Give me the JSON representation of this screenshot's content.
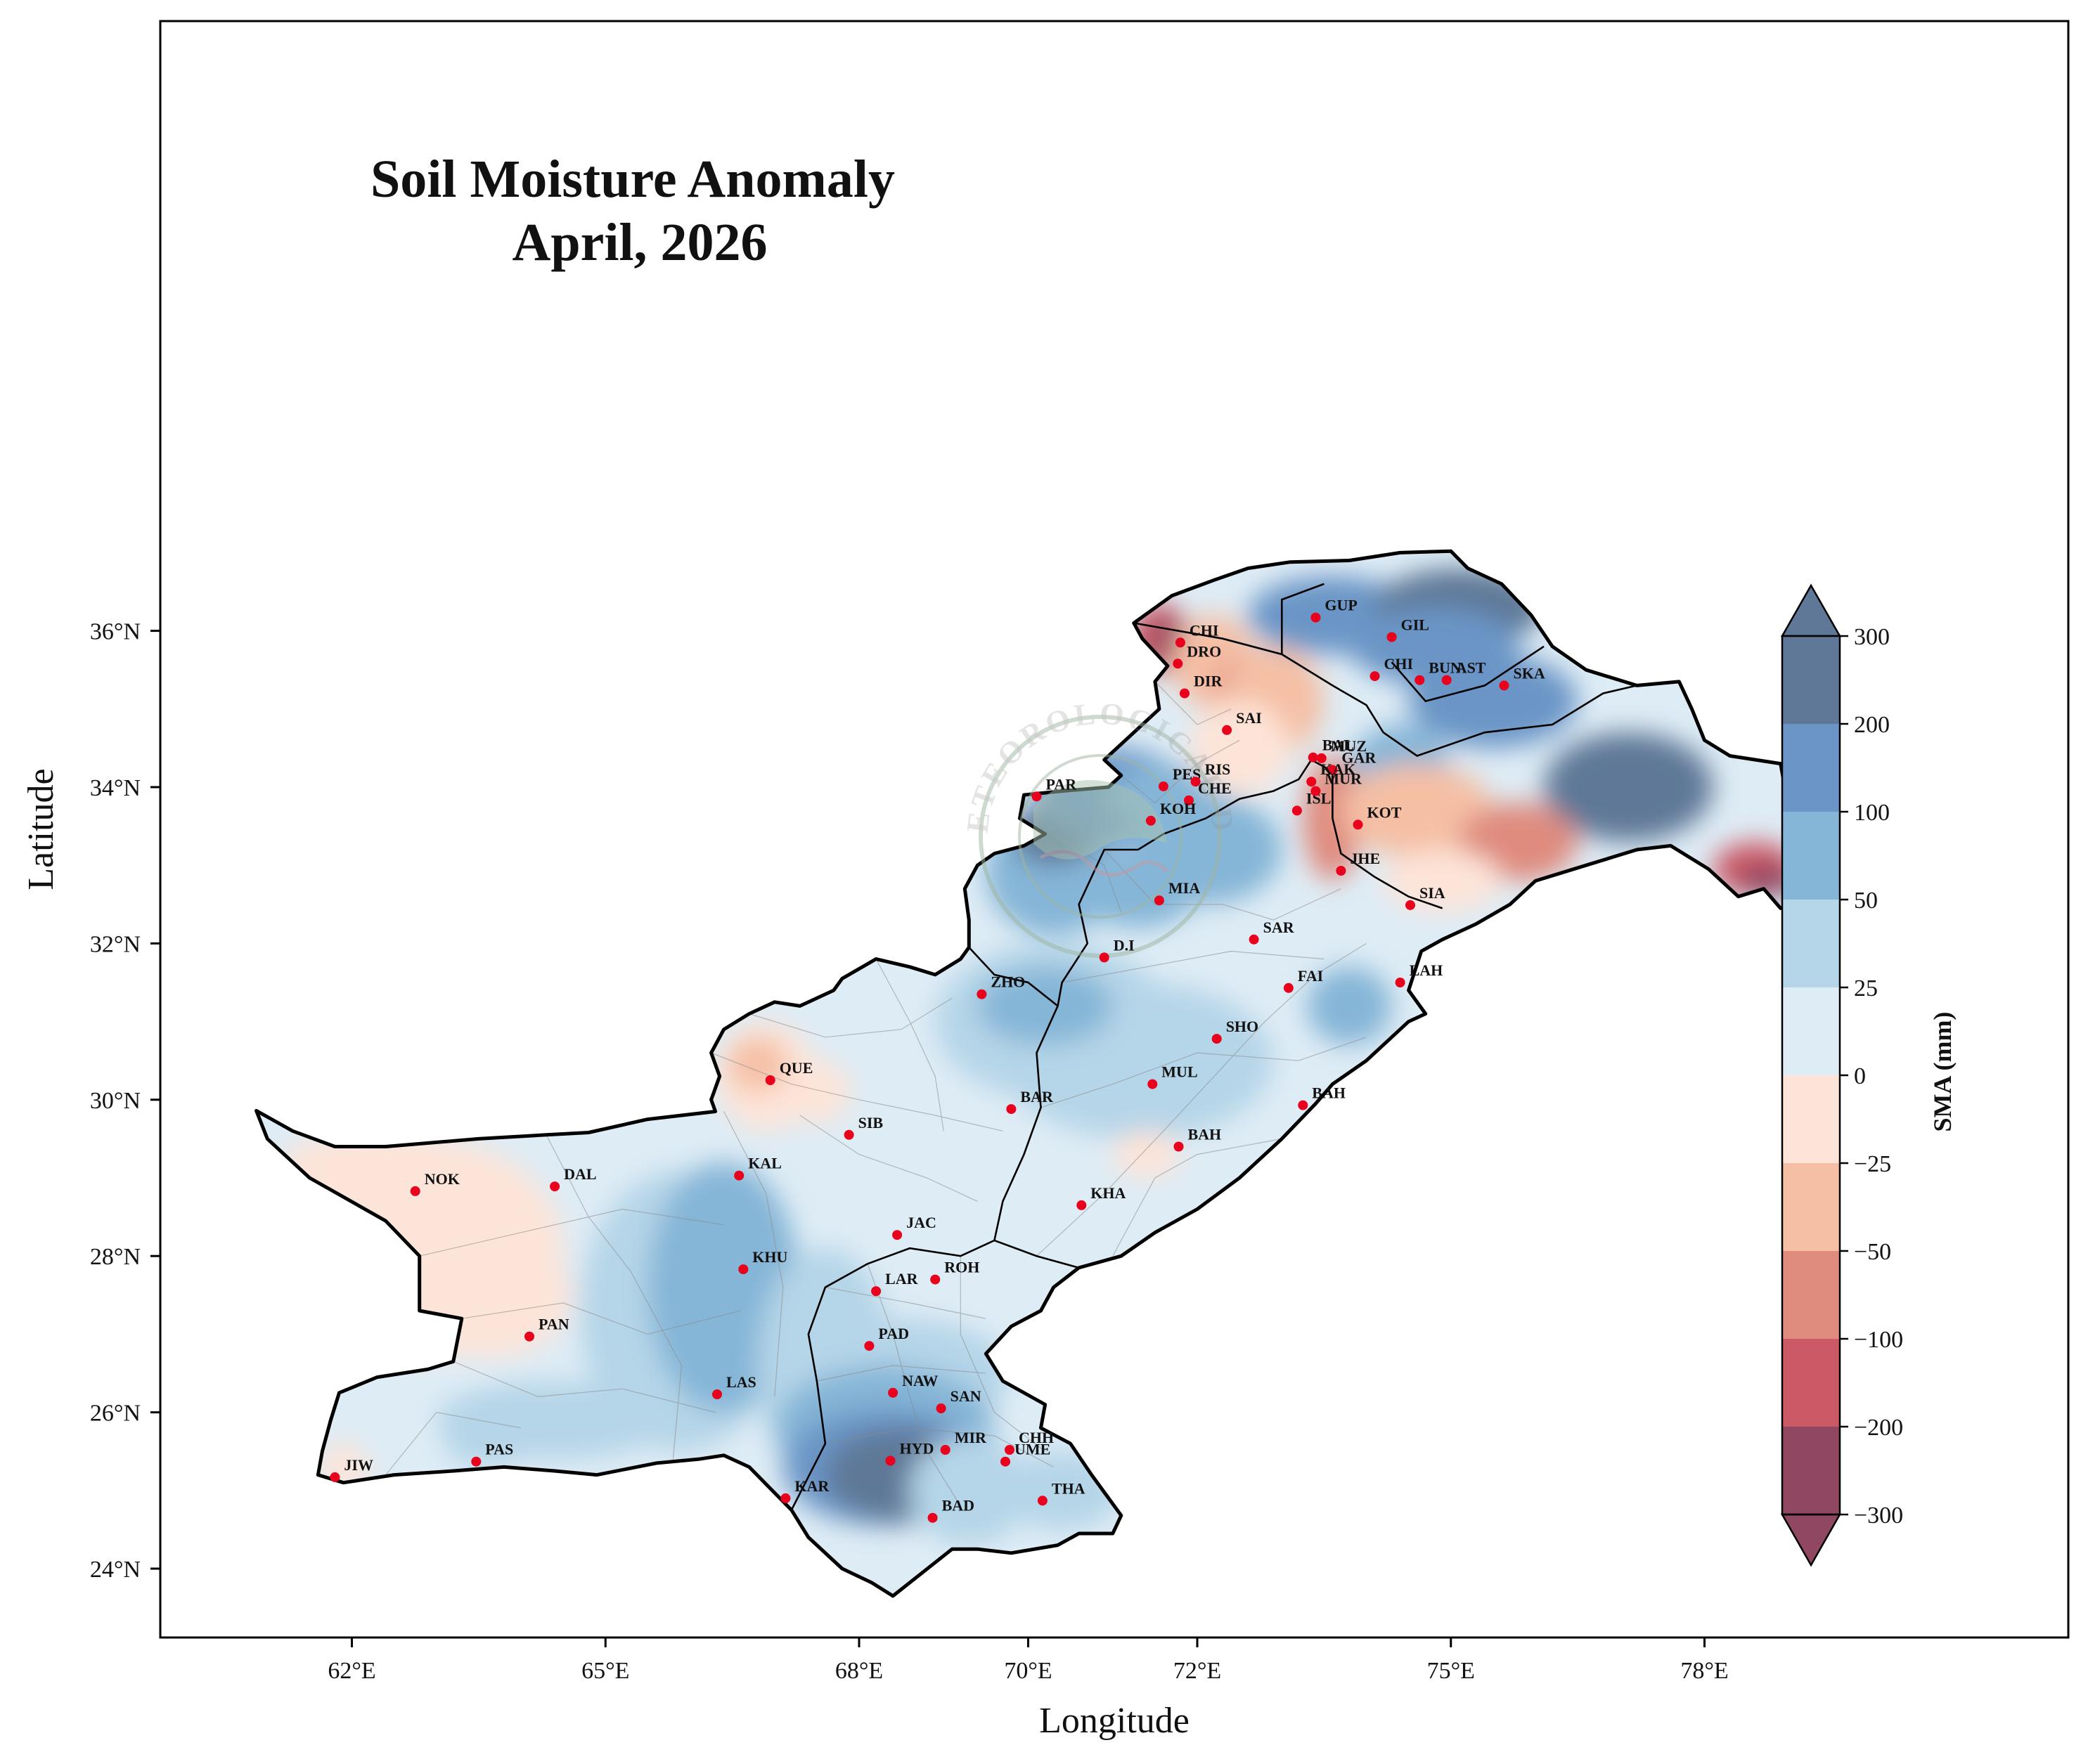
{
  "title": {
    "line1": "Soil Moisture Anomaly",
    "line2": "April, 2026"
  },
  "axes": {
    "xlabel": "Longitude",
    "ylabel": "Latitude",
    "x_ticks": [
      {
        "value": 62,
        "label": "62°E"
      },
      {
        "value": 65,
        "label": "65°E"
      },
      {
        "value": 68,
        "label": "68°E"
      },
      {
        "value": 70,
        "label": "70°E"
      },
      {
        "value": 72,
        "label": "72°E"
      },
      {
        "value": 75,
        "label": "75°E"
      },
      {
        "value": 78,
        "label": "78°E"
      }
    ],
    "y_ticks": [
      {
        "value": 36,
        "label": "36°N"
      },
      {
        "value": 34,
        "label": "34°N"
      },
      {
        "value": 32,
        "label": "32°N"
      },
      {
        "value": 30,
        "label": "30°N"
      },
      {
        "value": 28,
        "label": "28°N"
      },
      {
        "value": 26,
        "label": "26°N"
      },
      {
        "value": 24,
        "label": "24°N"
      }
    ]
  },
  "colorbar": {
    "title": "SMA (mm)",
    "levels": [
      {
        "label": "300",
        "color": "#5f7897"
      },
      {
        "label": "200",
        "color": "#6b95c6"
      },
      {
        "label": "100",
        "color": "#85b5d7"
      },
      {
        "label": "50",
        "color": "#b5d5e8"
      },
      {
        "label": "25",
        "color": "#deecf5"
      },
      {
        "label": "0",
        "color": "#fde4d8"
      },
      {
        "label": "−25",
        "color": "#f5bfa4"
      },
      {
        "label": "−50",
        "color": "#df8b7e"
      },
      {
        "label": "−100",
        "color": "#cc5a66"
      },
      {
        "label": "−200",
        "color": "#8f4762"
      },
      {
        "label": "−300",
        "color": ""
      }
    ]
  },
  "watermark": {
    "text_top": "PAKISTAN METEOROLOGICAL DEPARTMENT"
  },
  "stations": [
    {
      "code": "CHI",
      "lon": 71.8,
      "lat": 35.85
    },
    {
      "code": "DRO",
      "lon": 71.77,
      "lat": 35.58
    },
    {
      "code": "DIR",
      "lon": 71.85,
      "lat": 35.2
    },
    {
      "code": "GUP",
      "lon": 73.4,
      "lat": 36.17
    },
    {
      "code": "GIL",
      "lon": 74.3,
      "lat": 35.92
    },
    {
      "code": "CHI",
      "lon": 74.1,
      "lat": 35.42
    },
    {
      "code": "BUN",
      "lon": 74.63,
      "lat": 35.37
    },
    {
      "code": "AST",
      "lon": 74.95,
      "lat": 35.37
    },
    {
      "code": "SKA",
      "lon": 75.63,
      "lat": 35.3
    },
    {
      "code": "SAI",
      "lon": 72.35,
      "lat": 34.73
    },
    {
      "code": "BAL",
      "lon": 73.37,
      "lat": 34.38
    },
    {
      "code": "MUZ",
      "lon": 73.47,
      "lat": 34.37
    },
    {
      "code": "GAR",
      "lon": 73.6,
      "lat": 34.22
    },
    {
      "code": "PES",
      "lon": 71.6,
      "lat": 34.01
    },
    {
      "code": "RIS",
      "lon": 71.98,
      "lat": 34.07
    },
    {
      "code": "KAK",
      "lon": 73.35,
      "lat": 34.07
    },
    {
      "code": "CHE",
      "lon": 71.9,
      "lat": 33.83
    },
    {
      "code": "ISL",
      "lon": 73.18,
      "lat": 33.7
    },
    {
      "code": "MUR",
      "lon": 73.4,
      "lat": 33.95
    },
    {
      "code": "KOT",
      "lon": 73.9,
      "lat": 33.52
    },
    {
      "code": "PAR",
      "lon": 70.1,
      "lat": 33.88
    },
    {
      "code": "KOH",
      "lon": 71.45,
      "lat": 33.57
    },
    {
      "code": "JHE",
      "lon": 73.7,
      "lat": 32.93
    },
    {
      "code": "MIA",
      "lon": 71.55,
      "lat": 32.55
    },
    {
      "code": "SIA",
      "lon": 74.52,
      "lat": 32.49
    },
    {
      "code": "SAR",
      "lon": 72.67,
      "lat": 32.05
    },
    {
      "code": "D.I",
      "lon": 70.9,
      "lat": 31.82
    },
    {
      "code": "ZHO",
      "lon": 69.45,
      "lat": 31.35
    },
    {
      "code": "FAI",
      "lon": 73.08,
      "lat": 31.43
    },
    {
      "code": "LAH",
      "lon": 74.4,
      "lat": 31.5
    },
    {
      "code": "SHO",
      "lon": 72.23,
      "lat": 30.78
    },
    {
      "code": "QUE",
      "lon": 66.95,
      "lat": 30.25
    },
    {
      "code": "MUL",
      "lon": 71.47,
      "lat": 30.2
    },
    {
      "code": "BAR",
      "lon": 69.8,
      "lat": 29.88
    },
    {
      "code": "BAH",
      "lon": 73.25,
      "lat": 29.93
    },
    {
      "code": "SIB",
      "lon": 67.88,
      "lat": 29.55
    },
    {
      "code": "BAH",
      "lon": 71.78,
      "lat": 29.4
    },
    {
      "code": "KAL",
      "lon": 66.58,
      "lat": 29.03
    },
    {
      "code": "NOK",
      "lon": 62.75,
      "lat": 28.83
    },
    {
      "code": "DAL",
      "lon": 64.4,
      "lat": 28.89
    },
    {
      "code": "KHA",
      "lon": 70.63,
      "lat": 28.65
    },
    {
      "code": "JAC",
      "lon": 68.45,
      "lat": 28.27
    },
    {
      "code": "KHU",
      "lon": 66.63,
      "lat": 27.83
    },
    {
      "code": "LAR",
      "lon": 68.2,
      "lat": 27.55
    },
    {
      "code": "ROH",
      "lon": 68.9,
      "lat": 27.7
    },
    {
      "code": "PAN",
      "lon": 64.1,
      "lat": 26.97
    },
    {
      "code": "PAD",
      "lon": 68.12,
      "lat": 26.85
    },
    {
      "code": "LAS",
      "lon": 66.32,
      "lat": 26.23
    },
    {
      "code": "NAW",
      "lon": 68.4,
      "lat": 26.25
    },
    {
      "code": "SAN",
      "lon": 68.97,
      "lat": 26.05
    },
    {
      "code": "PAS",
      "lon": 63.47,
      "lat": 25.37
    },
    {
      "code": "MIR",
      "lon": 69.02,
      "lat": 25.52
    },
    {
      "code": "CHH",
      "lon": 69.78,
      "lat": 25.52
    },
    {
      "code": "HYD",
      "lon": 68.37,
      "lat": 25.38
    },
    {
      "code": "UME",
      "lon": 69.73,
      "lat": 25.37
    },
    {
      "code": "JIW",
      "lon": 61.8,
      "lat": 25.17
    },
    {
      "code": "KAR",
      "lon": 67.13,
      "lat": 24.9
    },
    {
      "code": "THA",
      "lon": 70.17,
      "lat": 24.87
    },
    {
      "code": "BAD",
      "lon": 68.87,
      "lat": 24.65
    }
  ]
}
